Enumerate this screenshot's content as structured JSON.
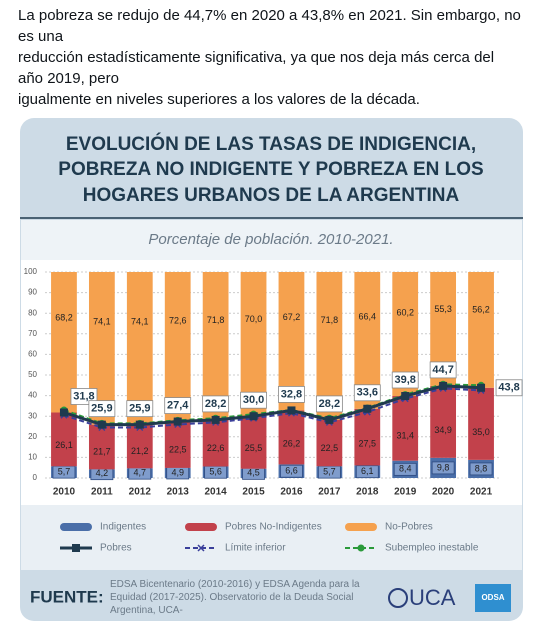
{
  "tweet_text": [
    "La pobreza se redujo de 44,7% en 2020 a 43,8% en 2021. Sin embargo, no es una",
    "reducción estadísticamente significativa, ya que nos deja más cerca del año 2019, pero",
    "igualmente en niveles superiores a los valores de la década."
  ],
  "chart_data": {
    "type": "bar",
    "title": [
      "EVOLUCIÓN DE LAS TASAS DE INDIGENCIA,",
      "POBREZA NO INDIGENTE Y POBREZA EN LOS",
      "HOGARES URBANOS DE LA ARGENTINA"
    ],
    "subtitle": "Porcentaje de población. 2010-2021.",
    "categories": [
      "2010",
      "2011",
      "2012",
      "2013",
      "2014",
      "2015",
      "2016",
      "2017",
      "2018",
      "2019",
      "2020",
      "2021"
    ],
    "series": [
      {
        "name": "Indigentes",
        "color": "#4a6ea8",
        "values": [
          5.7,
          4.2,
          4.7,
          4.9,
          5.6,
          4.5,
          6.6,
          5.7,
          6.1,
          8.4,
          9.8,
          8.8
        ],
        "value_labels": [
          "5,7",
          "4,2",
          "4,7",
          "4,9",
          "5,6",
          "4,5",
          "6,6",
          "5,7",
          "6,1",
          "8,4",
          "9,8",
          "8,8"
        ]
      },
      {
        "name": "Pobres No-Indigentes",
        "color": "#c2414b",
        "values": [
          26.1,
          21.7,
          21.2,
          22.5,
          22.6,
          25.5,
          26.2,
          22.5,
          27.5,
          31.4,
          34.9,
          35.0
        ],
        "value_labels": [
          "26,1",
          "21,7",
          "21,2",
          "22,5",
          "22,6",
          "25,5",
          "26,2",
          "22,5",
          "27,5",
          "31,4",
          "34,9",
          "35,0"
        ]
      },
      {
        "name": "No-Pobres",
        "color": "#f5a14e",
        "values": [
          68.2,
          74.1,
          74.1,
          72.6,
          71.8,
          70.0,
          67.2,
          71.8,
          66.4,
          60.2,
          55.3,
          56.2
        ],
        "value_labels": [
          "68,2",
          "74,1",
          "74,1",
          "72,6",
          "71,8",
          "70,0",
          "67,2",
          "71,8",
          "66,4",
          "60,2",
          "55,3",
          "56,2"
        ]
      }
    ],
    "lines": [
      {
        "name": "Pobres",
        "color": "#1f3a4e",
        "style": "solid",
        "marker": "square",
        "values": [
          31.8,
          25.9,
          25.9,
          27.4,
          28.2,
          30.0,
          32.8,
          28.2,
          33.6,
          39.8,
          44.7,
          43.8
        ],
        "value_labels": [
          "31,8",
          "25,9",
          "25,9",
          "27,4",
          "28,2",
          "30,0",
          "32,8",
          "28,2",
          "33,6",
          "39,8",
          "44,7",
          "43,8"
        ]
      },
      {
        "name": "Límite inferior",
        "color": "#3a3f9a",
        "style": "dashed",
        "marker": "x",
        "values": [
          30.5,
          24.5,
          24.5,
          26.0,
          27.0,
          29.0,
          31.5,
          27.0,
          32.0,
          38.5,
          43.5,
          42.5
        ]
      },
      {
        "name": "Subempleo inestable",
        "color": "#2a9a3a",
        "style": "dashed",
        "marker": "circle",
        "values": [
          33.0,
          26.5,
          26.5,
          28.0,
          29.0,
          31.0,
          33.0,
          29.0,
          34.0,
          40.5,
          45.5,
          45.0
        ]
      }
    ],
    "stacked": true,
    "ylim": [
      0,
      100
    ],
    "yticks": [
      0,
      10,
      20,
      30,
      40,
      50,
      60,
      70,
      80,
      90,
      100
    ],
    "grid": true
  },
  "footer": {
    "label": "FUENTE:",
    "source": "EDSA Bicentenario (2010-2016) y EDSA Agenda para la Equidad (2017-2025). Observatorio de la Deuda Social Argentina, UCA-",
    "logos": [
      "UCA",
      "ODSA"
    ]
  }
}
